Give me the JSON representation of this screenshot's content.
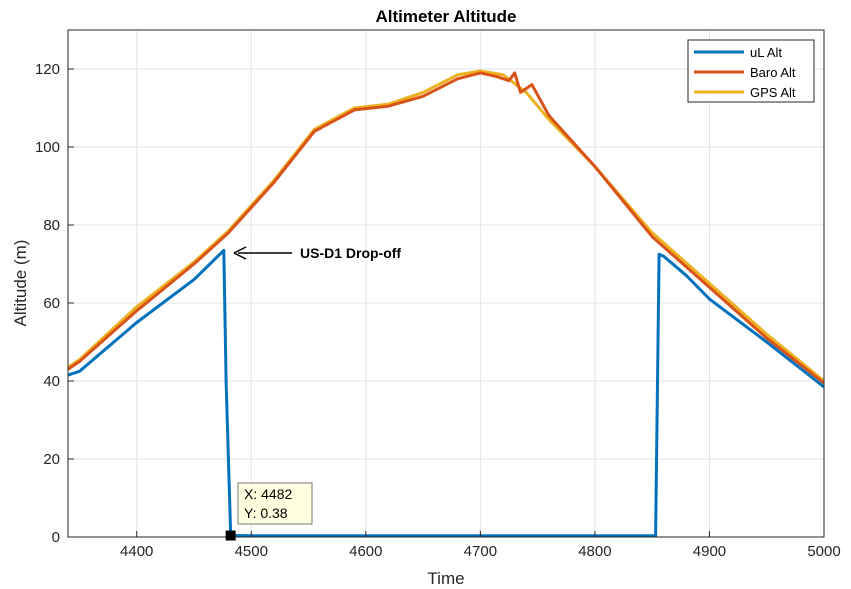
{
  "chart_data": {
    "type": "line",
    "title": "Altimeter Altitude",
    "xlabel": "Time",
    "ylabel": "Altitude (m)",
    "xlim": [
      4340,
      5000
    ],
    "ylim": [
      0,
      130
    ],
    "xticks": [
      4400,
      4500,
      4600,
      4700,
      4800,
      4900,
      5000
    ],
    "yticks": [
      0,
      20,
      40,
      60,
      80,
      100,
      120
    ],
    "grid": true,
    "legend_position": "top-right",
    "series": [
      {
        "name": "uL Alt",
        "color": "#0072BD",
        "x": [
          4340,
          4350,
          4400,
          4450,
          4476,
          4478,
          4482,
          4500,
          4600,
          4700,
          4800,
          4853,
          4856,
          4860,
          4880,
          4900,
          4950,
          5000
        ],
        "y": [
          41.5,
          42.5,
          55,
          66,
          73.5,
          40,
          0.38,
          0.3,
          0.3,
          0.3,
          0.3,
          0.3,
          72.5,
          72,
          67,
          61,
          50,
          38.5
        ]
      },
      {
        "name": "Baro Alt",
        "color": "#D95319",
        "x": [
          4340,
          4350,
          4400,
          4450,
          4480,
          4520,
          4555,
          4590,
          4620,
          4650,
          4680,
          4700,
          4715,
          4725,
          4730,
          4735,
          4745,
          4760,
          4800,
          4850,
          4900,
          4950,
          5000
        ],
        "y": [
          43,
          45,
          58,
          70,
          78,
          91,
          104,
          109.5,
          110.5,
          113,
          117.5,
          119,
          118,
          117,
          119,
          114,
          116,
          108,
          95,
          77,
          64,
          51,
          39.5
        ]
      },
      {
        "name": "GPS Alt",
        "color": "#EDB120",
        "x": [
          4340,
          4350,
          4400,
          4450,
          4480,
          4520,
          4555,
          4590,
          4620,
          4650,
          4680,
          4700,
          4720,
          4740,
          4760,
          4800,
          4850,
          4900,
          4950,
          5000
        ],
        "y": [
          43.5,
          45.5,
          59,
          70.5,
          78.5,
          91.5,
          104.5,
          110,
          111,
          114,
          118.5,
          119.5,
          118.5,
          114,
          107,
          95,
          78,
          65,
          52,
          40
        ]
      }
    ],
    "annotations": [
      {
        "text": "US-D1 Drop-off",
        "arrow_to": {
          "x": 4478,
          "y": 73.5
        }
      }
    ],
    "datatip": {
      "x": 4482,
      "y": 0.38,
      "line1": "X: 4482",
      "line2": "Y: 0.38"
    }
  }
}
